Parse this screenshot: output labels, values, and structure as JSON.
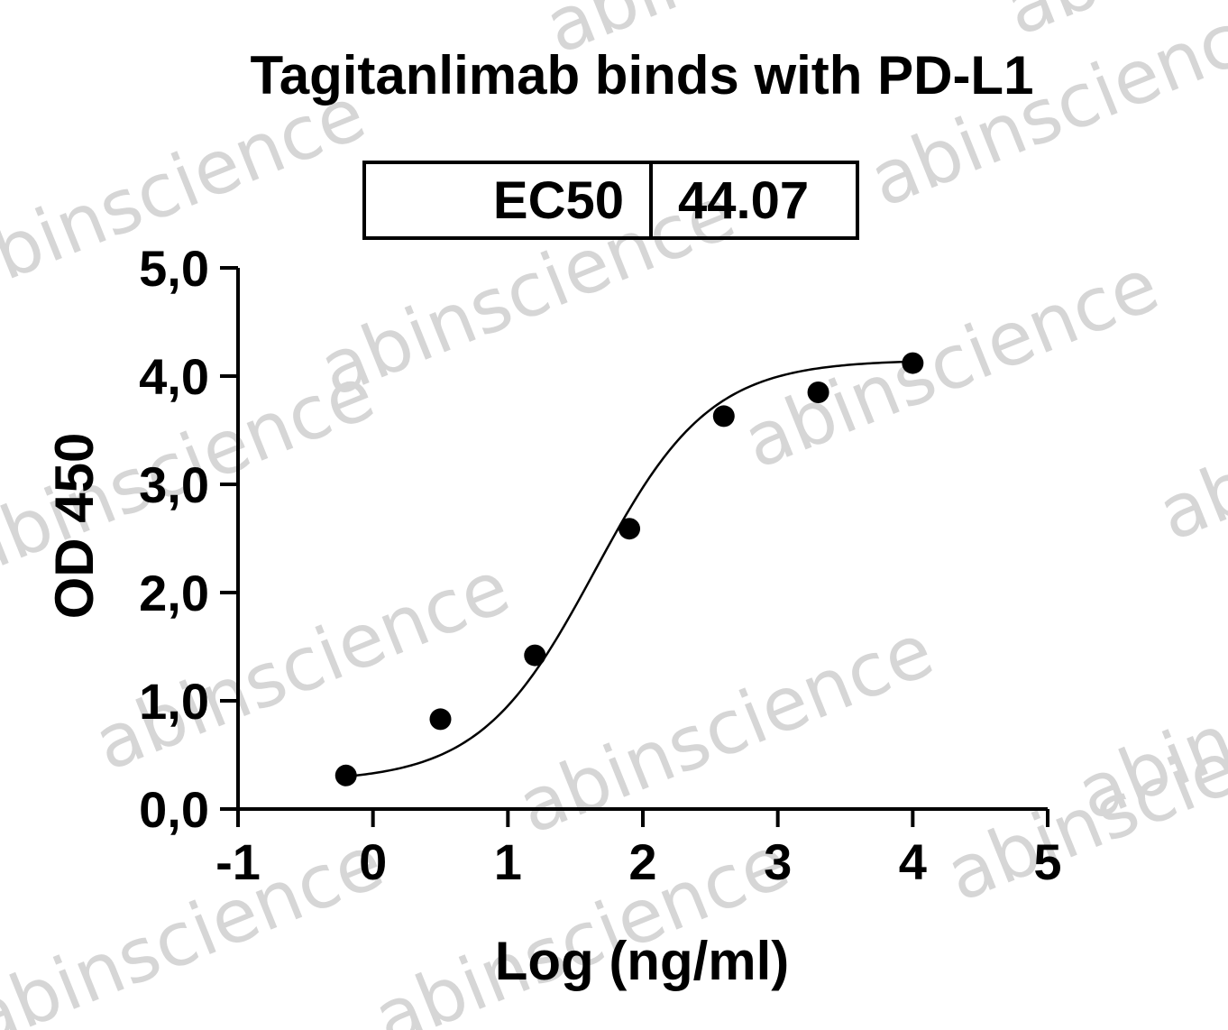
{
  "watermark": {
    "text": "abinscience",
    "color": "#d6d6d6"
  },
  "chart_data": {
    "type": "scatter",
    "title": "Tagitanlimab binds with PD-L1",
    "xlabel": "Log (ng/ml)",
    "ylabel": "OD 450",
    "xlim": [
      -1,
      5
    ],
    "ylim": [
      0,
      5
    ],
    "x_ticks": [
      "-1",
      "0",
      "1",
      "2",
      "3",
      "4",
      "5"
    ],
    "y_ticks": [
      "0,0",
      "1,0",
      "2,0",
      "3,0",
      "4,0",
      "5,0"
    ],
    "grid": false,
    "legend": "none",
    "marker_color": "#000000",
    "curve_color": "#000000",
    "ec50_table": {
      "label": "EC50",
      "value": "44.07"
    },
    "fit": {
      "model": "4PL",
      "bottom": 0.25,
      "top": 4.15,
      "log_ec50": 1.644,
      "hill": 1.02
    },
    "series": [
      {
        "x": [
          -0.2,
          0.5,
          1.2,
          1.9,
          2.6,
          3.3,
          4.0
        ],
        "y": [
          0.31,
          0.83,
          1.42,
          2.59,
          3.63,
          3.85,
          4.12
        ]
      }
    ]
  }
}
